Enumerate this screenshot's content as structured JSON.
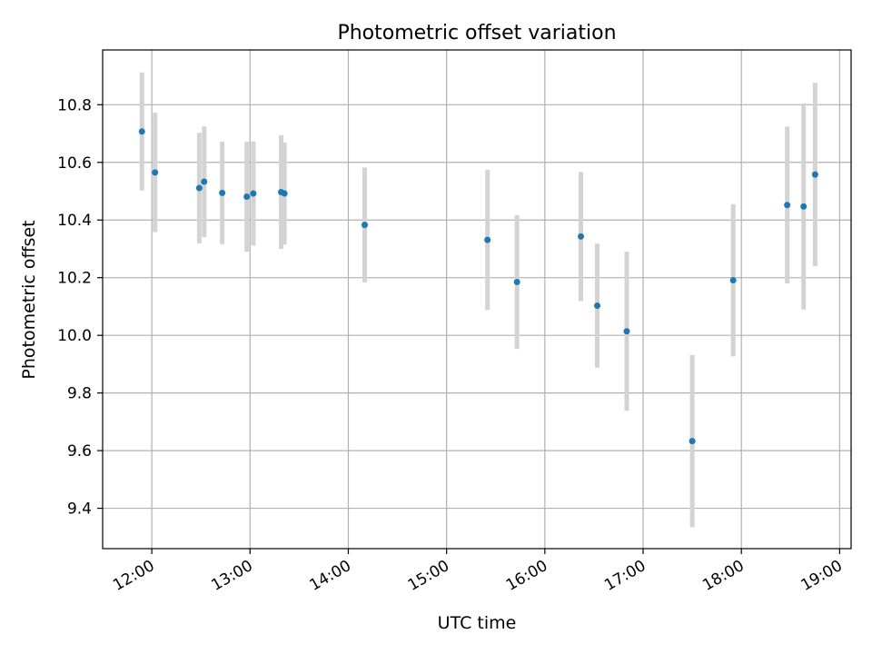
{
  "chart_data": {
    "type": "scatter",
    "title": "Photometric offset variation",
    "xlabel": "UTC time",
    "ylabel": "Photometric offset",
    "x_ticks": [
      "12:00",
      "13:00",
      "14:00",
      "15:00",
      "16:00",
      "17:00",
      "18:00",
      "19:00"
    ],
    "y_ticks": [
      "9.4",
      "9.6",
      "9.8",
      "10.0",
      "10.2",
      "10.4",
      "10.6",
      "10.8"
    ],
    "xlim": [
      "11:30",
      "19:07"
    ],
    "ylim": [
      9.26,
      10.99
    ],
    "grid": true,
    "point_color": "#1f77b4",
    "errorbar_color": "#d3d3d3",
    "points": [
      {
        "x": "11:54",
        "y": 10.707,
        "err": 0.205
      },
      {
        "x": "12:02",
        "y": 10.565,
        "err": 0.207
      },
      {
        "x": "12:29",
        "y": 10.511,
        "err": 0.192
      },
      {
        "x": "12:32",
        "y": 10.533,
        "err": 0.192
      },
      {
        "x": "12:43",
        "y": 10.494,
        "err": 0.178
      },
      {
        "x": "12:58",
        "y": 10.481,
        "err": 0.191
      },
      {
        "x": "13:02",
        "y": 10.492,
        "err": 0.181
      },
      {
        "x": "13:19",
        "y": 10.497,
        "err": 0.197
      },
      {
        "x": "13:21",
        "y": 10.492,
        "err": 0.177
      },
      {
        "x": "14:10",
        "y": 10.383,
        "err": 0.199
      },
      {
        "x": "15:25",
        "y": 10.331,
        "err": 0.243
      },
      {
        "x": "15:43",
        "y": 10.185,
        "err": 0.232
      },
      {
        "x": "16:22",
        "y": 10.343,
        "err": 0.224
      },
      {
        "x": "16:32",
        "y": 10.103,
        "err": 0.215
      },
      {
        "x": "16:50",
        "y": 10.014,
        "err": 0.276
      },
      {
        "x": "17:30",
        "y": 9.633,
        "err": 0.299
      },
      {
        "x": "17:55",
        "y": 10.191,
        "err": 0.264
      },
      {
        "x": "18:28",
        "y": 10.452,
        "err": 0.272
      },
      {
        "x": "18:38",
        "y": 10.447,
        "err": 0.358
      },
      {
        "x": "18:45",
        "y": 10.558,
        "err": 0.318
      }
    ]
  }
}
